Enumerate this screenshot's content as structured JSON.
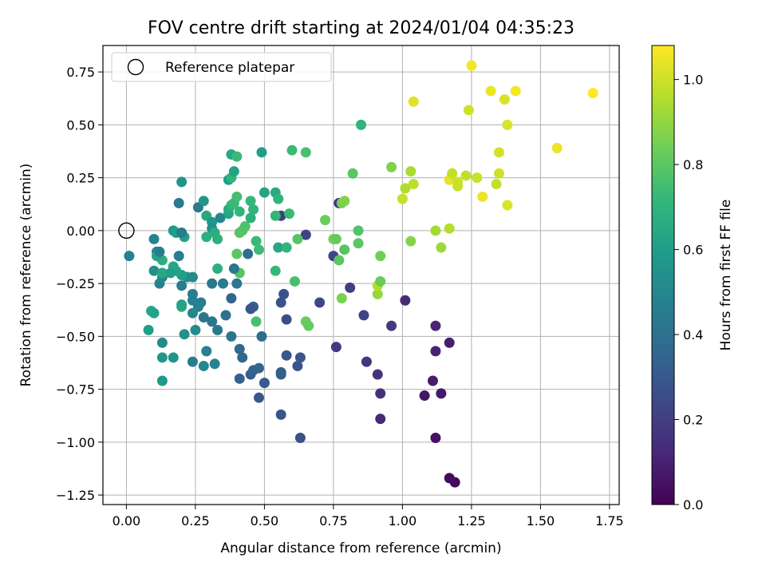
{
  "chart_data": {
    "type": "scatter",
    "title": "FOV centre drift starting at 2024/01/04 04:35:23",
    "xlabel": "Angular distance from reference (arcmin)",
    "ylabel": "Rotation from reference (arcmin)",
    "xlim": [
      -0.085,
      1.785
    ],
    "ylim": [
      -1.295,
      0.875
    ],
    "xticks": [
      0.0,
      0.25,
      0.5,
      0.75,
      1.0,
      1.25,
      1.5,
      1.75
    ],
    "yticks": [
      -1.25,
      -1.0,
      -0.75,
      -0.5,
      -0.25,
      0.0,
      0.25,
      0.5,
      0.75
    ],
    "xtick_labels": [
      "0.00",
      "0.25",
      "0.50",
      "0.75",
      "1.00",
      "1.25",
      "1.50",
      "1.75"
    ],
    "ytick_labels": [
      "−1.25",
      "−1.00",
      "−0.75",
      "−0.50",
      "−0.25",
      "0.00",
      "0.25",
      "0.50",
      "0.75"
    ],
    "grid": true,
    "legend": {
      "position": "top-left",
      "entries": [
        {
          "label": "Reference platepar",
          "marker": "open-circle",
          "x": 0.0,
          "y": 0.0
        }
      ]
    },
    "colorbar": {
      "label": "Hours from first FF file",
      "range": [
        0.0,
        1.08
      ],
      "ticks": [
        0.0,
        0.2,
        0.4,
        0.6,
        0.8,
        1.0
      ],
      "tick_labels": [
        "0.0",
        "0.2",
        "0.4",
        "0.6",
        "0.8",
        "1.0"
      ],
      "colormap": "viridis",
      "colors": [
        "#440154",
        "#482878",
        "#3e4989",
        "#31688e",
        "#26828e",
        "#1f9e89",
        "#35b779",
        "#6ece58",
        "#b5de2b",
        "#fde725"
      ]
    },
    "points": [
      [
        1.19,
        -1.19,
        0.02
      ],
      [
        1.17,
        -1.17,
        0.03
      ],
      [
        1.12,
        -0.98,
        0.05
      ],
      [
        1.08,
        -0.78,
        0.06
      ],
      [
        1.14,
        -0.77,
        0.07
      ],
      [
        1.11,
        -0.71,
        0.08
      ],
      [
        1.17,
        -0.53,
        0.09
      ],
      [
        1.12,
        -0.57,
        0.1
      ],
      [
        1.12,
        -0.45,
        0.11
      ],
      [
        1.01,
        -0.33,
        0.13
      ],
      [
        0.92,
        -0.89,
        0.12
      ],
      [
        0.92,
        -0.77,
        0.15
      ],
      [
        0.91,
        -0.68,
        0.16
      ],
      [
        0.87,
        -0.62,
        0.17
      ],
      [
        0.96,
        -0.45,
        0.18
      ],
      [
        0.76,
        -0.55,
        0.19
      ],
      [
        0.81,
        -0.27,
        0.2
      ],
      [
        0.86,
        -0.4,
        0.21
      ],
      [
        0.75,
        -0.12,
        0.22
      ],
      [
        0.77,
        0.13,
        0.16
      ],
      [
        0.65,
        -0.02,
        0.22
      ],
      [
        0.7,
        -0.34,
        0.23
      ],
      [
        0.56,
        0.07,
        0.2
      ],
      [
        0.63,
        -0.98,
        0.27
      ],
      [
        0.56,
        -0.87,
        0.29
      ],
      [
        0.62,
        -0.64,
        0.28
      ],
      [
        0.63,
        -0.6,
        0.29
      ],
      [
        0.58,
        -0.59,
        0.3
      ],
      [
        0.56,
        -0.67,
        0.31
      ],
      [
        0.56,
        -0.68,
        0.32
      ],
      [
        0.58,
        -0.42,
        0.26
      ],
      [
        0.57,
        -0.3,
        0.27
      ],
      [
        0.56,
        -0.34,
        0.28
      ],
      [
        0.48,
        -0.79,
        0.3
      ],
      [
        0.5,
        -0.72,
        0.31
      ],
      [
        0.45,
        -0.68,
        0.32
      ],
      [
        0.41,
        -0.7,
        0.33
      ],
      [
        0.46,
        -0.66,
        0.34
      ],
      [
        0.48,
        -0.65,
        0.35
      ],
      [
        0.42,
        -0.6,
        0.36
      ],
      [
        0.41,
        -0.56,
        0.37
      ],
      [
        0.49,
        -0.5,
        0.38
      ],
      [
        0.46,
        -0.36,
        0.32
      ],
      [
        0.45,
        -0.37,
        0.3
      ],
      [
        0.38,
        -0.32,
        0.35
      ],
      [
        0.36,
        -0.4,
        0.4
      ],
      [
        0.38,
        -0.5,
        0.42
      ],
      [
        0.33,
        -0.47,
        0.44
      ],
      [
        0.31,
        -0.43,
        0.43
      ],
      [
        0.28,
        -0.41,
        0.41
      ],
      [
        0.27,
        -0.34,
        0.45
      ],
      [
        0.26,
        -0.36,
        0.47
      ],
      [
        0.29,
        -0.57,
        0.48
      ],
      [
        0.32,
        -0.63,
        0.49
      ],
      [
        0.28,
        -0.64,
        0.5
      ],
      [
        0.24,
        -0.62,
        0.46
      ],
      [
        0.25,
        -0.47,
        0.52
      ],
      [
        0.24,
        -0.39,
        0.5
      ],
      [
        0.24,
        -0.33,
        0.47
      ],
      [
        0.24,
        -0.3,
        0.46
      ],
      [
        0.2,
        -0.26,
        0.45
      ],
      [
        0.21,
        -0.49,
        0.55
      ],
      [
        0.17,
        -0.6,
        0.56
      ],
      [
        0.13,
        -0.6,
        0.57
      ],
      [
        0.13,
        -0.71,
        0.58
      ],
      [
        0.13,
        -0.53,
        0.52
      ],
      [
        0.12,
        -0.25,
        0.48
      ],
      [
        0.13,
        -0.22,
        0.5
      ],
      [
        0.1,
        -0.19,
        0.53
      ],
      [
        0.11,
        -0.1,
        0.51
      ],
      [
        0.1,
        -0.04,
        0.49
      ],
      [
        0.01,
        -0.12,
        0.48
      ],
      [
        0.08,
        -0.47,
        0.6
      ],
      [
        0.09,
        -0.38,
        0.64
      ],
      [
        0.1,
        -0.39,
        0.62
      ],
      [
        0.19,
        -0.12,
        0.46
      ],
      [
        0.22,
        -0.22,
        0.53
      ],
      [
        0.24,
        -0.22,
        0.52
      ],
      [
        0.2,
        -0.36,
        0.67
      ],
      [
        0.2,
        -0.35,
        0.62
      ],
      [
        0.2,
        -0.21,
        0.6
      ],
      [
        0.18,
        -0.19,
        0.63
      ],
      [
        0.17,
        -0.17,
        0.64
      ],
      [
        0.16,
        -0.2,
        0.6
      ],
      [
        0.13,
        -0.2,
        0.65
      ],
      [
        0.13,
        -0.14,
        0.67
      ],
      [
        0.11,
        -0.12,
        0.63
      ],
      [
        0.12,
        -0.1,
        0.45
      ],
      [
        0.19,
        0.13,
        0.44
      ],
      [
        0.2,
        0.23,
        0.56
      ],
      [
        0.17,
        0.0,
        0.58
      ],
      [
        0.18,
        -0.01,
        0.6
      ],
      [
        0.21,
        -0.03,
        0.62
      ],
      [
        0.2,
        -0.01,
        0.45
      ],
      [
        0.26,
        0.11,
        0.44
      ],
      [
        0.28,
        0.14,
        0.57
      ],
      [
        0.29,
        0.07,
        0.65
      ],
      [
        0.31,
        0.04,
        0.56
      ],
      [
        0.31,
        0.01,
        0.54
      ],
      [
        0.32,
        -0.01,
        0.67
      ],
      [
        0.33,
        -0.04,
        0.68
      ],
      [
        0.29,
        -0.03,
        0.68
      ],
      [
        0.33,
        -0.18,
        0.68
      ],
      [
        0.31,
        -0.25,
        0.43
      ],
      [
        0.35,
        -0.25,
        0.45
      ],
      [
        0.34,
        0.06,
        0.5
      ],
      [
        0.37,
        0.08,
        0.63
      ],
      [
        0.37,
        0.1,
        0.66
      ],
      [
        0.38,
        0.12,
        0.7
      ],
      [
        0.39,
        0.13,
        0.73
      ],
      [
        0.4,
        0.16,
        0.75
      ],
      [
        0.41,
        0.09,
        0.71
      ],
      [
        0.42,
        0.0,
        0.76
      ],
      [
        0.43,
        0.02,
        0.77
      ],
      [
        0.41,
        -0.01,
        0.79
      ],
      [
        0.4,
        -0.11,
        0.8
      ],
      [
        0.41,
        -0.2,
        0.79
      ],
      [
        0.4,
        -0.25,
        0.43
      ],
      [
        0.39,
        -0.18,
        0.42
      ],
      [
        0.44,
        -0.11,
        0.39
      ],
      [
        0.45,
        0.06,
        0.68
      ],
      [
        0.46,
        0.1,
        0.7
      ],
      [
        0.45,
        0.14,
        0.72
      ],
      [
        0.47,
        -0.05,
        0.73
      ],
      [
        0.48,
        -0.09,
        0.74
      ],
      [
        0.47,
        -0.43,
        0.76
      ],
      [
        0.37,
        0.24,
        0.6
      ],
      [
        0.38,
        0.25,
        0.7
      ],
      [
        0.39,
        0.28,
        0.62
      ],
      [
        0.38,
        0.36,
        0.64
      ],
      [
        0.4,
        0.35,
        0.73
      ],
      [
        0.49,
        0.37,
        0.6
      ],
      [
        0.5,
        0.18,
        0.63
      ],
      [
        0.54,
        0.18,
        0.66
      ],
      [
        0.55,
        0.15,
        0.7
      ],
      [
        0.54,
        0.07,
        0.71
      ],
      [
        0.59,
        0.08,
        0.73
      ],
      [
        0.55,
        -0.08,
        0.64
      ],
      [
        0.58,
        -0.08,
        0.7
      ],
      [
        0.54,
        -0.19,
        0.72
      ],
      [
        0.61,
        -0.24,
        0.76
      ],
      [
        0.62,
        -0.04,
        0.79
      ],
      [
        0.6,
        0.38,
        0.73
      ],
      [
        0.65,
        0.37,
        0.76
      ],
      [
        0.72,
        0.05,
        0.83
      ],
      [
        0.75,
        -0.04,
        0.85
      ],
      [
        0.76,
        -0.04,
        0.82
      ],
      [
        0.77,
        -0.14,
        0.8
      ],
      [
        0.78,
        -0.32,
        0.86
      ],
      [
        0.65,
        -0.43,
        0.83
      ],
      [
        0.66,
        -0.45,
        0.82
      ],
      [
        0.78,
        0.13,
        0.85
      ],
      [
        0.79,
        0.14,
        0.87
      ],
      [
        0.79,
        -0.09,
        0.79
      ],
      [
        0.82,
        0.27,
        0.8
      ],
      [
        0.84,
        0.0,
        0.78
      ],
      [
        0.84,
        -0.06,
        0.8
      ],
      [
        0.85,
        0.5,
        0.7
      ],
      [
        0.91,
        -0.3,
        0.91
      ],
      [
        0.91,
        -0.26,
        0.96
      ],
      [
        0.92,
        -0.24,
        0.83
      ],
      [
        0.92,
        -0.12,
        0.84
      ],
      [
        0.96,
        0.3,
        0.87
      ],
      [
        1.0,
        0.15,
        0.99
      ],
      [
        1.01,
        0.2,
        0.95
      ],
      [
        1.03,
        0.28,
        0.94
      ],
      [
        1.04,
        0.22,
        0.97
      ],
      [
        1.03,
        -0.05,
        0.88
      ],
      [
        1.04,
        0.61,
        1.03
      ],
      [
        1.12,
        0.0,
        0.93
      ],
      [
        1.14,
        -0.08,
        0.92
      ],
      [
        1.17,
        0.01,
        0.96
      ],
      [
        1.17,
        0.24,
        1.04
      ],
      [
        1.18,
        0.27,
        0.98
      ],
      [
        1.2,
        0.23,
        1.0
      ],
      [
        1.2,
        0.21,
        0.99
      ],
      [
        1.23,
        0.26,
        0.98
      ],
      [
        1.24,
        0.57,
        1.0
      ],
      [
        1.25,
        0.78,
        1.06
      ],
      [
        1.27,
        0.25,
        0.99
      ],
      [
        1.29,
        0.16,
        1.05
      ],
      [
        1.32,
        0.66,
        1.05
      ],
      [
        1.34,
        0.22,
        0.98
      ],
      [
        1.35,
        0.27,
        1.0
      ],
      [
        1.35,
        0.37,
        1.01
      ],
      [
        1.37,
        0.62,
        1.02
      ],
      [
        1.38,
        0.5,
        1.02
      ],
      [
        1.38,
        0.12,
        1.02
      ],
      [
        1.41,
        0.66,
        1.07
      ],
      [
        1.56,
        0.39,
        1.05
      ],
      [
        1.69,
        0.65,
        1.08
      ]
    ]
  }
}
